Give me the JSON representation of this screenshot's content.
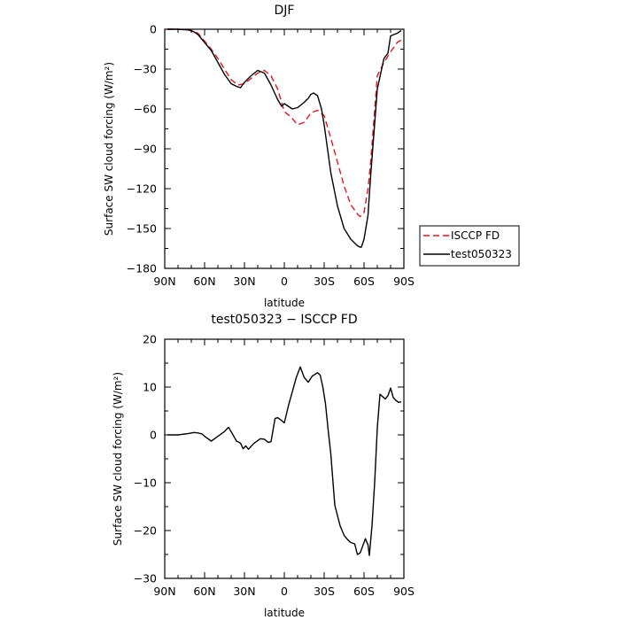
{
  "chart_data": [
    {
      "type": "line",
      "title": "DJF",
      "xlabel": "latitude",
      "ylabel": "Surface SW cloud forcing (W/m²)",
      "xlim": [
        -90,
        90
      ],
      "ylim": [
        -180,
        0
      ],
      "xticks": [
        -90,
        -60,
        -30,
        0,
        30,
        60,
        90
      ],
      "xtick_labels": [
        "90N",
        "60N",
        "30N",
        "0",
        "30S",
        "60S",
        "90S"
      ],
      "yticks": [
        0,
        -30,
        -60,
        -90,
        -120,
        -150,
        -180
      ],
      "ytick_labels": [
        "0",
        "−30",
        "−60",
        "−90",
        "−120",
        "−150",
        "−180"
      ],
      "legend": "right",
      "series": [
        {
          "name": "ISCCP FD",
          "color": "#e8141e",
          "dash": "dashed",
          "x": [
            -88,
            -80,
            -72,
            -68,
            -65,
            -60,
            -55,
            -50,
            -45,
            -40,
            -35,
            -30,
            -25,
            -20,
            -15,
            -10,
            -5,
            0,
            5,
            10,
            15,
            20,
            25,
            30,
            35,
            40,
            45,
            50,
            55,
            57,
            60,
            63,
            65,
            70,
            75,
            80,
            85,
            88
          ],
          "y": [
            0,
            0,
            -0.5,
            -1.5,
            -3,
            -9,
            -15,
            -22,
            -30,
            -38,
            -42,
            -41,
            -37,
            -33,
            -31,
            -35,
            -45,
            -62,
            -66,
            -72,
            -70,
            -63,
            -61,
            -65,
            -82,
            -100,
            -118,
            -132,
            -139,
            -141,
            -138,
            -120,
            -100,
            -35,
            -25,
            -17,
            -10,
            -8
          ]
        },
        {
          "name": "test050323",
          "color": "#000000",
          "dash": "solid",
          "x": [
            -88,
            -80,
            -72,
            -68,
            -65,
            -60,
            -55,
            -50,
            -45,
            -40,
            -36,
            -33,
            -30,
            -25,
            -20,
            -15,
            -10,
            -5,
            -2,
            0,
            3,
            6,
            10,
            15,
            18,
            20,
            22,
            25,
            28,
            30,
            35,
            40,
            45,
            50,
            55,
            57,
            58,
            60,
            63,
            65,
            70,
            75,
            78,
            80,
            85,
            88
          ],
          "y": [
            0,
            0,
            -0.5,
            -2,
            -4,
            -10,
            -16,
            -25,
            -34,
            -41,
            -43,
            -44,
            -40,
            -35,
            -31,
            -33,
            -42,
            -53,
            -58,
            -56,
            -58,
            -60,
            -59,
            -55,
            -52,
            -49,
            -48,
            -50,
            -60,
            -72,
            -108,
            -133,
            -150,
            -158,
            -163,
            -164,
            -164,
            -158,
            -140,
            -110,
            -45,
            -22,
            -18,
            -5,
            -3,
            -1
          ]
        }
      ]
    },
    {
      "type": "line",
      "title": "test050323 − ISCCP FD",
      "xlabel": "latitude",
      "ylabel": "Surface SW cloud forcing (W/m²)",
      "xlim": [
        -90,
        90
      ],
      "ylim": [
        -30,
        20
      ],
      "xticks": [
        -90,
        -60,
        -30,
        0,
        30,
        60,
        90
      ],
      "xtick_labels": [
        "90N",
        "60N",
        "30N",
        "0",
        "30S",
        "60S",
        "90S"
      ],
      "yticks": [
        20,
        10,
        0,
        -10,
        -20,
        -30
      ],
      "ytick_labels": [
        "20",
        "10",
        "0",
        "−10",
        "−20",
        "−30"
      ],
      "series": [
        {
          "color": "#000000",
          "dash": "solid",
          "x": [
            -88,
            -80,
            -72,
            -68,
            -65,
            -62,
            -60,
            -55,
            -50,
            -45,
            -42,
            -38,
            -36,
            -33,
            -31,
            -29,
            -27,
            -23,
            -18,
            -15,
            -12,
            -10,
            -7,
            -5,
            -2,
            0,
            3,
            6,
            9,
            12,
            15,
            18,
            21,
            25,
            27,
            29,
            31,
            33,
            35,
            38,
            42,
            45,
            48,
            50,
            53,
            55,
            57,
            58,
            61,
            63,
            64,
            66,
            68,
            70,
            72,
            74,
            76,
            78,
            80,
            82,
            84,
            86,
            88
          ],
          "y": [
            0,
            0,
            0.3,
            0.5,
            0.4,
            0.2,
            -0.3,
            -1.3,
            -0.3,
            0.7,
            1.6,
            -0.3,
            -1.3,
            -1.7,
            -2.9,
            -2.3,
            -3,
            -1.8,
            -0.8,
            -0.9,
            -1.6,
            -1.4,
            3.4,
            3.6,
            3,
            2.5,
            6,
            9,
            12,
            14.2,
            12,
            11,
            12.3,
            13,
            12.5,
            10,
            6.5,
            1,
            -4,
            -14.7,
            -19,
            -21,
            -22,
            -22.5,
            -22.8,
            -25,
            -24.7,
            -24,
            -21.7,
            -23,
            -25.2,
            -19,
            -10,
            1.5,
            8.5,
            8,
            7.5,
            8.2,
            9.8,
            7.8,
            7.2,
            6.8,
            6.9
          ]
        }
      ]
    }
  ]
}
